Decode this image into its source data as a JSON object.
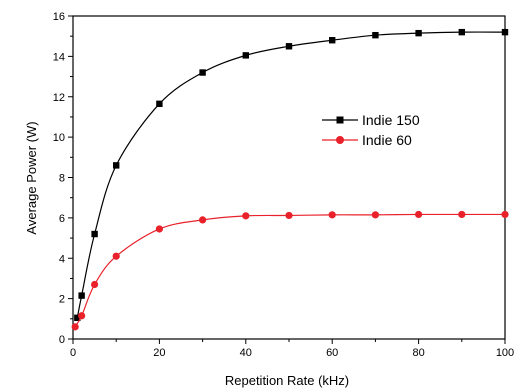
{
  "chart_data": {
    "type": "line",
    "xlabel": "Repetition Rate (kHz)",
    "ylabel": "Average Power (W)",
    "xlim": [
      0,
      100
    ],
    "ylim": [
      0,
      16
    ],
    "xticks": [
      0,
      20,
      40,
      60,
      80,
      100
    ],
    "yticks": [
      0,
      2,
      4,
      6,
      8,
      10,
      12,
      14,
      16
    ],
    "grid": false,
    "legend_position": "center-right",
    "series": [
      {
        "name": "Indie 150",
        "color": "#000000",
        "marker": "square",
        "x": [
          1,
          2,
          5,
          10,
          20,
          30,
          40,
          50,
          60,
          70,
          80,
          90,
          100
        ],
        "y": [
          1.05,
          2.15,
          5.2,
          8.6,
          11.65,
          13.2,
          14.05,
          14.5,
          14.8,
          15.05,
          15.15,
          15.2,
          15.2
        ]
      },
      {
        "name": "Indie 60",
        "color": "#e8212a",
        "marker": "circle",
        "x": [
          0.5,
          2,
          5,
          10,
          20,
          30,
          40,
          50,
          60,
          70,
          80,
          90,
          100
        ],
        "y": [
          0.6,
          1.15,
          2.7,
          4.1,
          5.45,
          5.9,
          6.1,
          6.12,
          6.15,
          6.15,
          6.17,
          6.17,
          6.17
        ]
      }
    ]
  }
}
